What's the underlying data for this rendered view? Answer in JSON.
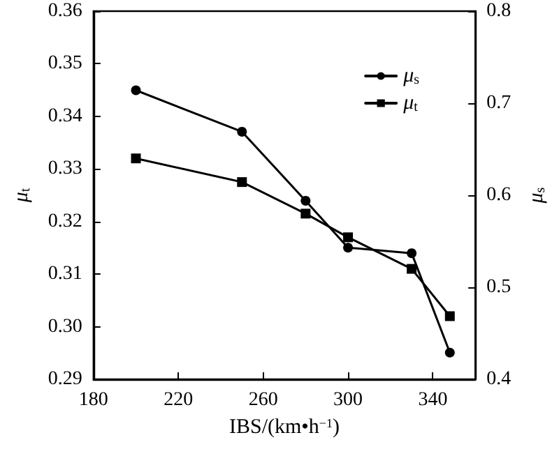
{
  "chart_data": {
    "type": "line",
    "xlabel": "IBS/(km•h$^{−1}$)",
    "ylabel": "μ$_{t}$",
    "y2label": "μ$_{s}$",
    "x": [
      200,
      250,
      280,
      300,
      330,
      348
    ],
    "series": [
      {
        "name": "μ$_{s}$",
        "color": "#000000",
        "axis": "y2",
        "marker": "circle",
        "values": [
          0.714,
          0.669,
          0.594,
          0.543,
          0.537,
          0.429
        ]
      },
      {
        "name": "μ$_{t}$",
        "color": "#000000",
        "marker": "square",
        "values": [
          0.332,
          0.3275,
          0.3215,
          0.317,
          0.311,
          0.302
        ]
      }
    ],
    "xlim": [
      180,
      360
    ],
    "xticks": [
      180,
      220,
      260,
      300,
      340
    ],
    "ylim": [
      0.29,
      0.36
    ],
    "yticks": [
      {
        "value": 0.29,
        "label": "0.29"
      },
      {
        "value": 0.3,
        "label": "0.30"
      },
      {
        "value": 0.31,
        "label": "0.31"
      },
      {
        "value": 0.32,
        "label": "0.32"
      },
      {
        "value": 0.33,
        "label": "0.33"
      },
      {
        "value": 0.34,
        "label": "0.34"
      },
      {
        "value": 0.35,
        "label": "0.35"
      },
      {
        "value": 0.36,
        "label": "0.36"
      }
    ],
    "y2lim": [
      0.4,
      0.8
    ],
    "y2ticks": [
      {
        "value": 0.4,
        "label": "0.4"
      },
      {
        "value": 0.5,
        "label": "0.5"
      },
      {
        "value": 0.6,
        "label": "0.6"
      },
      {
        "value": 0.7,
        "label": "0.7"
      },
      {
        "value": 0.8,
        "label": "0.8"
      }
    ],
    "legend": "top right",
    "line_style": "solid"
  }
}
